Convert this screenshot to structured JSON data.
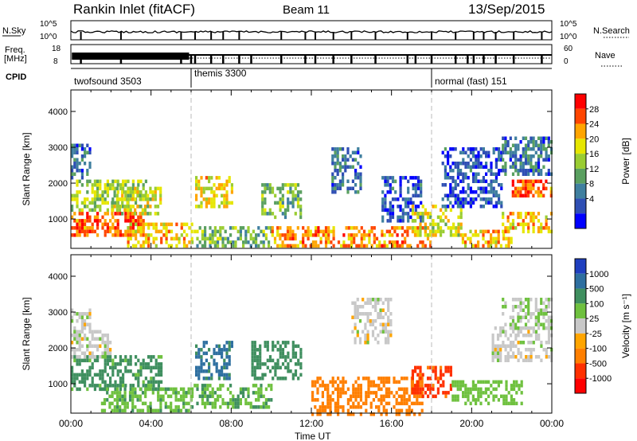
{
  "header": {
    "site": "Rankin Inlet (fitACF)",
    "beam": "Beam 11",
    "date": "13/Sep/2015"
  },
  "strip_labels": {
    "nsky": "N.Sky",
    "freq_line1": "Freq.",
    "freq_line2": "[MHz]",
    "cpid": "CPID",
    "nsearch": "N.Search",
    "nave": "Nave",
    "nsky_ticks": [
      "10^5",
      "10^0"
    ],
    "nsearch_ticks": [
      "10^5",
      "10^0"
    ],
    "freq_ticks": [
      "18",
      "8"
    ],
    "nave_ticks": [
      "60",
      "0"
    ]
  },
  "cpid_segments": [
    {
      "label": "twofsound 3503",
      "start_hour": 0,
      "end_hour": 6
    },
    {
      "label": "themis 3300",
      "start_hour": 6,
      "end_hour": 18
    },
    {
      "label": "normal (fast) 151",
      "start_hour": 18,
      "end_hour": 24
    }
  ],
  "colors": {
    "power_scale": [
      "#0000ff",
      "#2f4fb4",
      "#3f7f9f",
      "#5aa060",
      "#9acd32",
      "#e6e600",
      "#ffa500",
      "#ff4500",
      "#ff0000"
    ],
    "velocity_scale": [
      "#1f3fbf",
      "#2e6fa0",
      "#3f8f5f",
      "#6fc13f",
      "#c8c8c8",
      "#ffa500",
      "#ff7f00",
      "#ff3000",
      "#ff0000"
    ]
  },
  "chart_data": [
    {
      "type": "heatmap",
      "title": "Power",
      "xlabel": "",
      "ylabel": "Slant Range [km]",
      "colorbar_label": "Power [dB]",
      "colorbar_ticks": [
        "28",
        "24",
        "20",
        "16",
        "12",
        "8",
        "4"
      ],
      "x_tick_labels": [
        "00:00",
        "04:00",
        "08:00",
        "12:00",
        "16:00",
        "20:00",
        "00:00"
      ],
      "y_tick_labels": [
        "4000",
        "3000",
        "2000",
        "1000"
      ],
      "xlim_hours": [
        0,
        24
      ],
      "ylim_km": [
        180,
        4600
      ],
      "regions": [
        {
          "t0": 0.0,
          "t1": 3.6,
          "r0": 600,
          "r1": 1200,
          "value": 26
        },
        {
          "t0": 0.0,
          "t1": 3.8,
          "r0": 1300,
          "r1": 2100,
          "value": 16
        },
        {
          "t0": 0.0,
          "t1": 1.0,
          "r0": 2200,
          "r1": 3100,
          "value": 8
        },
        {
          "t0": 2.0,
          "t1": 4.5,
          "r0": 1200,
          "r1": 1900,
          "value": 18
        },
        {
          "t0": 2.8,
          "t1": 6.0,
          "r0": 300,
          "r1": 900,
          "value": 22
        },
        {
          "t0": 6.2,
          "t1": 8.0,
          "r0": 1400,
          "r1": 2200,
          "value": 20
        },
        {
          "t0": 6.0,
          "t1": 10.0,
          "r0": 300,
          "r1": 800,
          "value": 14
        },
        {
          "t0": 9.5,
          "t1": 11.5,
          "r0": 1100,
          "r1": 2000,
          "value": 14
        },
        {
          "t0": 10.0,
          "t1": 18.0,
          "r0": 250,
          "r1": 800,
          "value": 24
        },
        {
          "t0": 13.0,
          "t1": 14.5,
          "r0": 1800,
          "r1": 3000,
          "value": 8
        },
        {
          "t0": 15.5,
          "t1": 17.5,
          "r0": 1000,
          "r1": 2200,
          "value": 6
        },
        {
          "t0": 17.0,
          "t1": 19.5,
          "r0": 600,
          "r1": 1400,
          "value": 18
        },
        {
          "t0": 18.5,
          "t1": 21.5,
          "r0": 1400,
          "r1": 3000,
          "value": 6
        },
        {
          "t0": 19.5,
          "t1": 22.0,
          "r0": 250,
          "r1": 700,
          "value": 22
        },
        {
          "t0": 21.5,
          "t1": 24.0,
          "r0": 700,
          "r1": 1200,
          "value": 22
        },
        {
          "t0": 22.0,
          "t1": 24.0,
          "r0": 1700,
          "r1": 2100,
          "value": 26
        },
        {
          "t0": 21.5,
          "t1": 24.0,
          "r0": 2300,
          "r1": 3300,
          "value": 8
        }
      ]
    },
    {
      "type": "heatmap",
      "title": "Velocity",
      "xlabel": "Time UT",
      "ylabel": "Slant Range [km]",
      "colorbar_label": "Velocity [m s⁻¹]",
      "colorbar_ticks": [
        "1000",
        "500",
        "100",
        "25",
        "-25",
        "-100",
        "-500",
        "-1000"
      ],
      "x_tick_labels": [
        "00:00",
        "04:00",
        "08:00",
        "12:00",
        "16:00",
        "20:00",
        "00:00"
      ],
      "y_tick_labels": [
        "4000",
        "3000",
        "2000",
        "1000"
      ],
      "xlim_hours": [
        0,
        24
      ],
      "ylim_km": [
        180,
        4600
      ],
      "regions": [
        {
          "t0": 0.0,
          "t1": 4.5,
          "r0": 900,
          "r1": 1800,
          "value": 150
        },
        {
          "t0": 0.0,
          "t1": 2.0,
          "r0": 1800,
          "r1": 2500,
          "value": 0
        },
        {
          "t0": 0.0,
          "t1": 1.0,
          "r0": 2600,
          "r1": 3100,
          "value": 0
        },
        {
          "t0": 1.5,
          "t1": 6.0,
          "r0": 300,
          "r1": 900,
          "value": 80
        },
        {
          "t0": 6.2,
          "t1": 8.0,
          "r0": 1200,
          "r1": 2200,
          "value": 600
        },
        {
          "t0": 6.0,
          "t1": 10.0,
          "r0": 400,
          "r1": 1000,
          "value": 90
        },
        {
          "t0": 9.0,
          "t1": 11.5,
          "r0": 1200,
          "r1": 2200,
          "value": 300
        },
        {
          "t0": 12.0,
          "t1": 17.5,
          "r0": 200,
          "r1": 1200,
          "value": -300
        },
        {
          "t0": 14.0,
          "t1": 16.0,
          "r0": 2200,
          "r1": 3400,
          "value": 0
        },
        {
          "t0": 17.0,
          "t1": 19.0,
          "r0": 700,
          "r1": 1500,
          "value": -700
        },
        {
          "t0": 19.0,
          "t1": 22.5,
          "r0": 500,
          "r1": 1100,
          "value": 60
        },
        {
          "t0": 21.0,
          "t1": 24.0,
          "r0": 1700,
          "r1": 2600,
          "value": 0
        },
        {
          "t0": 21.5,
          "t1": 24.0,
          "r0": 2600,
          "r1": 3400,
          "value": 20
        }
      ]
    }
  ]
}
